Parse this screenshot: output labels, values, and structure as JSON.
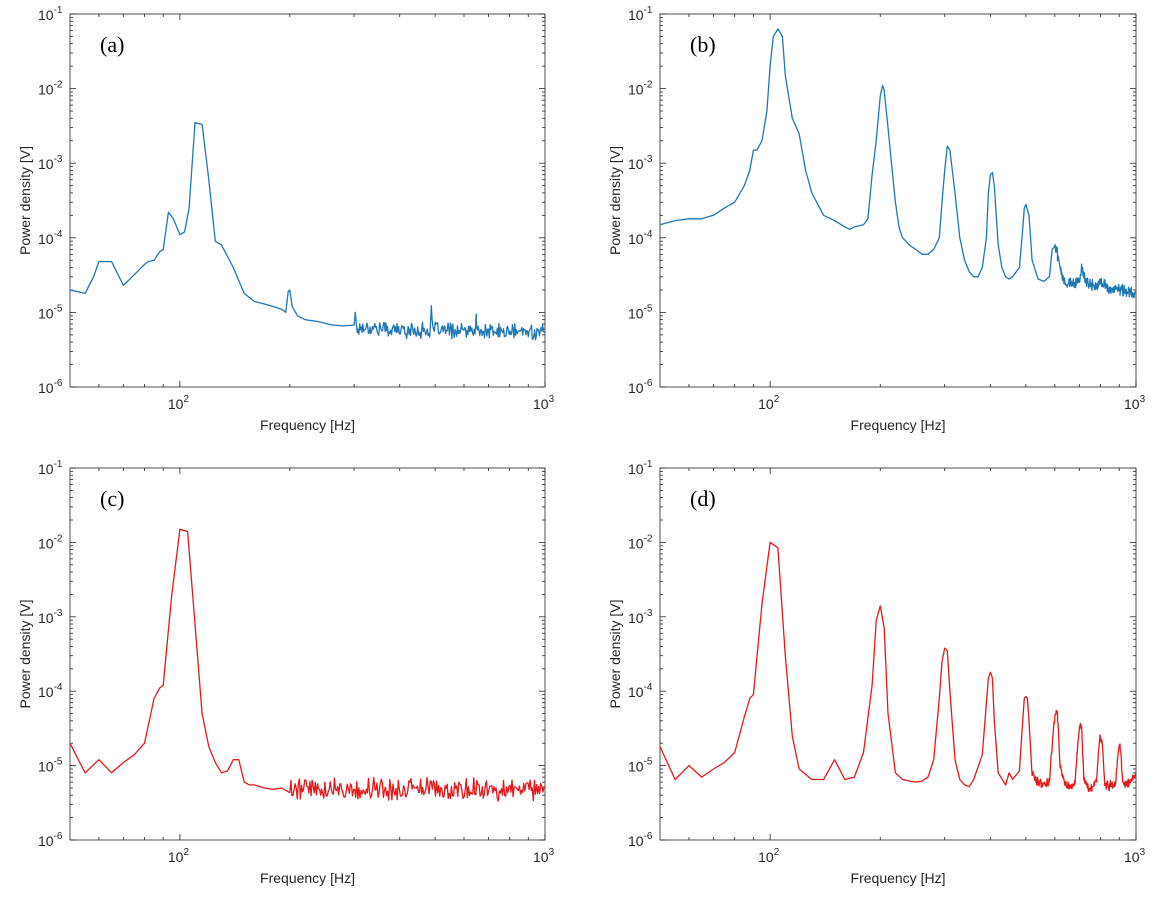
{
  "chart_data": [
    {
      "type": "line",
      "panel_label": "(a)",
      "xlabel": "Frequency [Hz]",
      "ylabel": "Power density [V]",
      "xscale": "log",
      "yscale": "log",
      "xlim": [
        50,
        1000
      ],
      "ylim": [
        1e-06,
        0.1
      ],
      "x_ticks": [
        {
          "base": "10",
          "exp": "2",
          "value": 100
        },
        {
          "base": "10",
          "exp": "3",
          "value": 1000
        }
      ],
      "y_ticks": [
        {
          "base": "10",
          "exp": "-6",
          "value": 1e-06
        },
        {
          "base": "10",
          "exp": "-5",
          "value": 1e-05
        },
        {
          "base": "10",
          "exp": "-4",
          "value": 0.0001
        },
        {
          "base": "10",
          "exp": "-3",
          "value": 0.001
        },
        {
          "base": "10",
          "exp": "-2",
          "value": 0.01
        },
        {
          "base": "10",
          "exp": "-1",
          "value": 0.1
        }
      ],
      "grid": false,
      "color": "#1f77b4",
      "noise": {
        "from": 300,
        "to": 1000,
        "base": 5.5e-06,
        "amp": 0.08
      },
      "series": [
        {
          "x": [
            50,
            55,
            58,
            60,
            62,
            65,
            70,
            75,
            80,
            82,
            85,
            88,
            90,
            93,
            96,
            100,
            103,
            106,
            110,
            115,
            120,
            125,
            130,
            140,
            150,
            160,
            170,
            180,
            190,
            195,
            198,
            200,
            203,
            210,
            220,
            240,
            260,
            280,
            300,
            302,
            305,
            320,
            350,
            400,
            450,
            470,
            480,
            485,
            488,
            490,
            493,
            500,
            520,
            600,
            640,
            645,
            648,
            650,
            655,
            660,
            700,
            800,
            900,
            1000
          ],
          "y": [
            2e-05,
            1.8e-05,
            3e-05,
            4.8e-05,
            4.8e-05,
            4.8e-05,
            2.3e-05,
            3.2e-05,
            4.4e-05,
            4.8e-05,
            5e-05,
            6.5e-05,
            7e-05,
            0.00022,
            0.00018,
            0.00011,
            0.00012,
            0.00025,
            0.0035,
            0.0033,
            0.0006,
            9e-05,
            8e-05,
            4e-05,
            1.8e-05,
            1.4e-05,
            1.3e-05,
            1.2e-05,
            1.1e-05,
            1e-05,
            1.9e-05,
            2e-05,
            1.2e-05,
            9e-06,
            8e-06,
            7.5e-06,
            6.8e-06,
            6.6e-06,
            7e-06,
            1e-05,
            6e-06,
            6.4e-06,
            6.1e-06,
            5.8e-06,
            5.7e-06,
            5.8e-06,
            5.5e-06,
            6e-06,
            1.1e-05,
            7e-06,
            5.5e-06,
            6e-06,
            5.8e-06,
            5.6e-06,
            5.5e-06,
            5.8e-06,
            9.5e-06,
            5.6e-06,
            5.4e-06,
            5.5e-06,
            5.4e-06,
            5.4e-06,
            5.3e-06,
            5.5e-06
          ]
        }
      ]
    },
    {
      "type": "line",
      "panel_label": "(b)",
      "xlabel": "Frequency [Hz]",
      "ylabel": "Power density [V]",
      "xscale": "log",
      "yscale": "log",
      "xlim": [
        50,
        1000
      ],
      "ylim": [
        1e-06,
        0.1
      ],
      "x_ticks": [
        {
          "base": "10",
          "exp": "2",
          "value": 100
        },
        {
          "base": "10",
          "exp": "3",
          "value": 1000
        }
      ],
      "y_ticks": [
        {
          "base": "10",
          "exp": "-6",
          "value": 1e-06
        },
        {
          "base": "10",
          "exp": "-5",
          "value": 1e-05
        },
        {
          "base": "10",
          "exp": "-4",
          "value": 0.0001
        },
        {
          "base": "10",
          "exp": "-3",
          "value": 0.001
        },
        {
          "base": "10",
          "exp": "-2",
          "value": 0.01
        },
        {
          "base": "10",
          "exp": "-1",
          "value": 0.1
        }
      ],
      "grid": false,
      "color": "#1f77b4",
      "noise": {
        "from": 600,
        "to": 1000,
        "base": 0,
        "amp": 0.06
      },
      "series": [
        {
          "x": [
            50,
            55,
            60,
            65,
            70,
            75,
            80,
            85,
            88,
            90,
            92,
            95,
            98,
            100,
            102,
            105,
            108,
            110,
            115,
            120,
            125,
            130,
            140,
            150,
            160,
            165,
            170,
            180,
            185,
            190,
            195,
            200,
            203,
            205,
            210,
            215,
            220,
            225,
            230,
            235,
            240,
            250,
            260,
            270,
            280,
            290,
            295,
            300,
            305,
            310,
            320,
            330,
            340,
            350,
            360,
            370,
            380,
            390,
            395,
            400,
            405,
            410,
            420,
            430,
            440,
            450,
            460,
            480,
            490,
            495,
            500,
            510,
            520,
            540,
            560,
            580,
            590,
            600,
            610,
            620,
            640,
            680,
            700,
            710,
            720,
            740,
            780,
            800,
            850,
            900,
            950,
            1000
          ],
          "y": [
            0.00015,
            0.00017,
            0.00018,
            0.00018,
            0.0002,
            0.00025,
            0.0003,
            0.0005,
            0.0008,
            0.0015,
            0.0015,
            0.002,
            0.005,
            0.02,
            0.05,
            0.063,
            0.05,
            0.015,
            0.004,
            0.0025,
            0.0008,
            0.0004,
            0.0002,
            0.00017,
            0.00014,
            0.00013,
            0.00014,
            0.00015,
            0.00018,
            0.0007,
            0.002,
            0.008,
            0.011,
            0.0095,
            0.003,
            0.0009,
            0.0003,
            0.00014,
            0.0001,
            9e-05,
            8e-05,
            7e-05,
            6e-05,
            6e-05,
            7e-05,
            0.0001,
            0.0003,
            0.0008,
            0.0017,
            0.0015,
            0.0004,
            0.0001,
            5e-05,
            3.5e-05,
            3e-05,
            3e-05,
            4e-05,
            0.0001,
            0.0004,
            0.0007,
            0.00075,
            0.0005,
            8e-05,
            4e-05,
            3e-05,
            2.8e-05,
            3e-05,
            4e-05,
            0.00013,
            0.00025,
            0.00028,
            0.0002,
            5e-05,
            2.8e-05,
            2.6e-05,
            3e-05,
            7e-05,
            8e-05,
            6e-05,
            4e-05,
            2.5e-05,
            2.5e-05,
            2.7e-05,
            4e-05,
            3e-05,
            2.4e-05,
            2.2e-05,
            2.6e-05,
            2e-05,
            2e-05,
            1.9e-05,
            1.8e-05
          ]
        }
      ]
    },
    {
      "type": "line",
      "panel_label": "(c)",
      "xlabel": "Frequency [Hz]",
      "ylabel": "Power density [V]",
      "xscale": "log",
      "yscale": "log",
      "xlim": [
        50,
        1000
      ],
      "ylim": [
        1e-06,
        0.1
      ],
      "x_ticks": [
        {
          "base": "10",
          "exp": "2",
          "value": 100
        },
        {
          "base": "10",
          "exp": "3",
          "value": 1000
        }
      ],
      "y_ticks": [
        {
          "base": "10",
          "exp": "-6",
          "value": 1e-06
        },
        {
          "base": "10",
          "exp": "-5",
          "value": 1e-05
        },
        {
          "base": "10",
          "exp": "-4",
          "value": 0.0001
        },
        {
          "base": "10",
          "exp": "-3",
          "value": 0.001
        },
        {
          "base": "10",
          "exp": "-2",
          "value": 0.01
        },
        {
          "base": "10",
          "exp": "-1",
          "value": 0.1
        }
      ],
      "grid": false,
      "color": "#e31a1c",
      "noise": {
        "from": 200,
        "to": 1000,
        "base": 4.8e-06,
        "amp": 0.12
      },
      "series": [
        {
          "x": [
            50,
            55,
            60,
            65,
            70,
            75,
            80,
            85,
            88,
            90,
            95,
            100,
            105,
            110,
            115,
            120,
            125,
            130,
            135,
            140,
            145,
            150,
            155,
            160,
            170,
            180,
            190,
            200,
            210,
            220,
            230,
            240,
            250,
            260,
            270,
            280
          ],
          "y": [
            2e-05,
            8e-06,
            1.2e-05,
            8e-06,
            1.1e-05,
            1.4e-05,
            2e-05,
            8e-05,
            0.00011,
            0.00012,
            0.002,
            0.015,
            0.014,
            0.0008,
            5e-05,
            1.8e-05,
            1.1e-05,
            8e-06,
            8.5e-06,
            1.2e-05,
            1.2e-05,
            6e-06,
            5.5e-06,
            5.5e-06,
            5e-06,
            4.8e-06,
            5e-06,
            5e-06,
            4.5e-06,
            6e-06,
            5e-06,
            5e-06,
            4.5e-06,
            5e-06,
            5e-06,
            4.8e-06
          ]
        }
      ]
    },
    {
      "type": "line",
      "panel_label": "(d)",
      "xlabel": "Frequency [Hz]",
      "ylabel": "Power density [V]",
      "xscale": "log",
      "yscale": "log",
      "xlim": [
        50,
        1000
      ],
      "ylim": [
        1e-06,
        0.1
      ],
      "x_ticks": [
        {
          "base": "10",
          "exp": "2",
          "value": 100
        },
        {
          "base": "10",
          "exp": "3",
          "value": 1000
        }
      ],
      "y_ticks": [
        {
          "base": "10",
          "exp": "-6",
          "value": 1e-06
        },
        {
          "base": "10",
          "exp": "-5",
          "value": 1e-05
        },
        {
          "base": "10",
          "exp": "-4",
          "value": 0.0001
        },
        {
          "base": "10",
          "exp": "-3",
          "value": 0.001
        },
        {
          "base": "10",
          "exp": "-2",
          "value": 0.01
        },
        {
          "base": "10",
          "exp": "-1",
          "value": 0.1
        }
      ],
      "grid": false,
      "color": "#e31a1c",
      "noise": {
        "from": 520,
        "to": 1000,
        "base": 0,
        "amp": 0.05
      },
      "series": [
        {
          "x": [
            50,
            55,
            60,
            65,
            70,
            75,
            80,
            85,
            88,
            90,
            95,
            100,
            105,
            110,
            115,
            120,
            130,
            140,
            150,
            160,
            170,
            180,
            190,
            195,
            200,
            205,
            210,
            220,
            230,
            240,
            250,
            260,
            270,
            280,
            290,
            295,
            300,
            305,
            310,
            320,
            330,
            340,
            350,
            360,
            380,
            390,
            395,
            400,
            405,
            410,
            420,
            440,
            450,
            460,
            480,
            490,
            495,
            500,
            505,
            510,
            520,
            540,
            560,
            580,
            590,
            600,
            605,
            610,
            620,
            640,
            660,
            680,
            690,
            700,
            705,
            710,
            720,
            740,
            760,
            780,
            790,
            800,
            805,
            810,
            820,
            840,
            860,
            880,
            890,
            900,
            905,
            910,
            920,
            940,
            960,
            980,
            1000
          ],
          "y": [
            1.8e-05,
            6.5e-06,
            1e-05,
            7e-06,
            9e-06,
            1.1e-05,
            1.5e-05,
            4.5e-05,
            8e-05,
            9e-05,
            0.0015,
            0.01,
            0.0085,
            0.0003,
            2.5e-05,
            9e-06,
            6.5e-06,
            6.5e-06,
            1.2e-05,
            6.5e-06,
            7e-06,
            1.5e-05,
            0.00012,
            0.0009,
            0.0014,
            0.0007,
            5e-05,
            8e-06,
            6.5e-06,
            6.2e-06,
            6e-06,
            6.2e-06,
            7e-06,
            1.2e-05,
            8e-05,
            0.00025,
            0.00038,
            0.00035,
            0.0001,
            1.2e-05,
            6.5e-06,
            5.5e-06,
            5.2e-06,
            6.5e-06,
            1.4e-05,
            7e-05,
            0.00015,
            0.00018,
            0.00015,
            4e-05,
            8e-06,
            5.5e-06,
            8e-06,
            6.5e-06,
            8.5e-06,
            4e-05,
            8e-05,
            8.5e-05,
            8e-05,
            4e-05,
            8e-06,
            5.8e-06,
            5.8e-06,
            6e-06,
            1.8e-05,
            4.5e-05,
            5.5e-05,
            5e-05,
            1e-05,
            5.6e-06,
            5.4e-06,
            5.5e-06,
            1.5e-05,
            3.3e-05,
            3.5e-05,
            3.2e-05,
            6.5e-06,
            5e-06,
            5.2e-06,
            6e-06,
            1.6e-05,
            2.4e-05,
            2.2e-05,
            1.8e-05,
            6e-06,
            5.2e-06,
            5.5e-06,
            6e-06,
            1.2e-05,
            1.9e-05,
            1.8e-05,
            1.4e-05,
            6e-06,
            5.5e-06,
            6e-06,
            6.5e-06,
            7e-06
          ]
        }
      ]
    }
  ]
}
